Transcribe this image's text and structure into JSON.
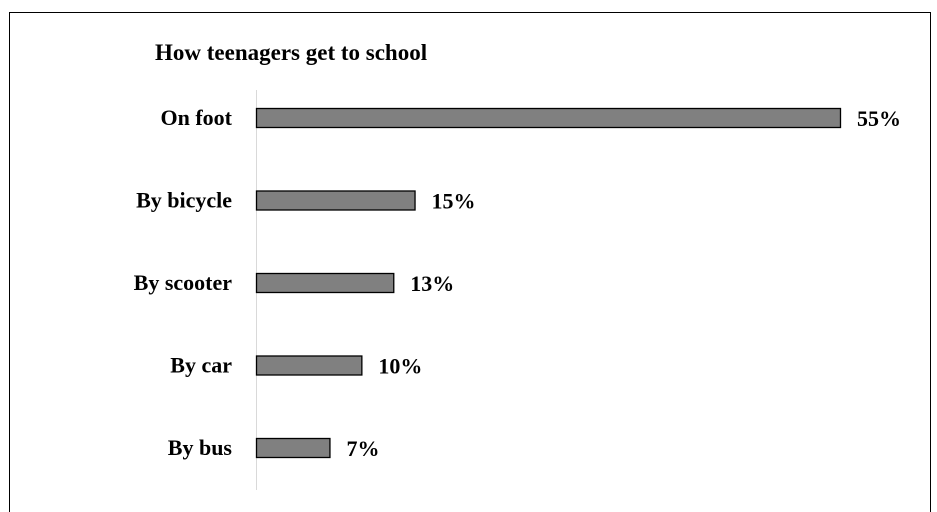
{
  "chart_data": {
    "type": "bar",
    "orientation": "horizontal",
    "title": "How teenagers get to school",
    "categories": [
      "On foot",
      "By bicycle",
      "By scooter",
      "By car",
      "By bus"
    ],
    "values": [
      55,
      15,
      13,
      10,
      7
    ],
    "value_labels": [
      "55%",
      "15%",
      "13%",
      "10%",
      "7%"
    ],
    "unit": "%",
    "xlim": [
      0,
      55
    ],
    "grid": false,
    "legend": "none",
    "bar_color": "#808080",
    "bar_edge_color": "#000000",
    "axis_line_color": "#d9d9d9"
  }
}
